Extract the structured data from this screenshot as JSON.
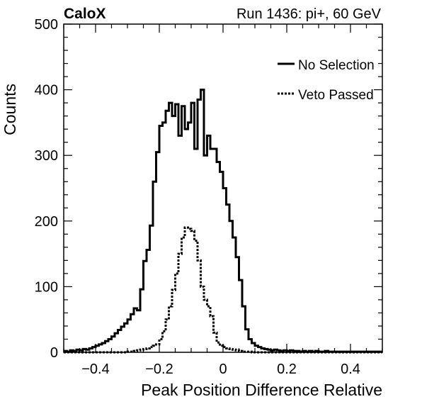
{
  "header": {
    "experiment": "CaloX",
    "run_info": "Run 1436: pi+, 60 GeV"
  },
  "chart_data": {
    "type": "line",
    "step": true,
    "xlabel": "Peak Position Difference Relative",
    "ylabel": "Counts",
    "xlim": [
      -0.5,
      0.5
    ],
    "ylim": [
      0,
      500
    ],
    "x_ticks": [
      -0.4,
      -0.2,
      0,
      0.2,
      0.4
    ],
    "x_tick_labels": [
      "−0.4",
      "−0.2",
      "0",
      "0.2",
      "0.4"
    ],
    "y_ticks": [
      0,
      100,
      200,
      300,
      400,
      500
    ],
    "y_tick_labels": [
      "0",
      "100",
      "200",
      "300",
      "400",
      "500"
    ],
    "grid": false,
    "legend_position": "top-right",
    "bin_width": 0.01,
    "bin_start": -0.5,
    "series": [
      {
        "name": "No Selection",
        "style": "solid",
        "color": "#000000",
        "values": [
          2,
          1,
          3,
          2,
          4,
          3,
          5,
          4,
          6,
          8,
          10,
          12,
          14,
          17,
          20,
          24,
          29,
          34,
          39,
          44,
          50,
          58,
          67,
          64,
          96,
          139,
          156,
          193,
          260,
          305,
          345,
          350,
          368,
          380,
          360,
          378,
          330,
          375,
          340,
          350,
          380,
          310,
          385,
          400,
          300,
          330,
          310,
          310,
          290,
          275,
          250,
          225,
          200,
          175,
          145,
          110,
          70,
          35,
          20,
          14,
          10,
          8,
          6,
          5,
          4,
          3,
          4,
          3,
          2,
          3,
          2,
          3,
          2,
          2,
          1,
          2,
          1,
          2,
          1,
          2,
          1,
          1,
          2,
          1,
          1,
          1,
          1,
          1,
          1,
          1,
          1,
          1,
          1,
          1,
          1,
          1,
          1,
          1,
          1,
          1
        ]
      },
      {
        "name": "Veto Passed",
        "style": "dotted",
        "color": "#000000",
        "values": [
          0,
          0,
          0,
          0,
          0,
          0,
          0,
          0,
          0,
          0,
          0,
          0,
          0,
          0,
          0,
          0,
          0,
          0,
          0,
          0,
          1,
          1,
          2,
          3,
          4,
          5,
          6,
          8,
          10,
          12,
          20,
          32,
          50,
          70,
          95,
          120,
          150,
          175,
          190,
          188,
          185,
          170,
          140,
          100,
          80,
          70,
          55,
          30,
          15,
          10,
          8,
          6,
          5,
          4,
          3,
          2,
          1,
          1,
          1,
          0,
          0,
          0,
          0,
          0,
          0,
          0,
          0,
          0,
          0,
          0,
          0,
          0,
          0,
          0,
          0,
          0,
          0,
          0,
          0,
          0,
          0,
          0,
          0,
          0,
          0,
          0,
          0,
          0,
          0,
          0,
          0,
          0,
          0,
          0,
          0,
          0,
          0,
          0,
          0,
          0
        ]
      }
    ]
  }
}
